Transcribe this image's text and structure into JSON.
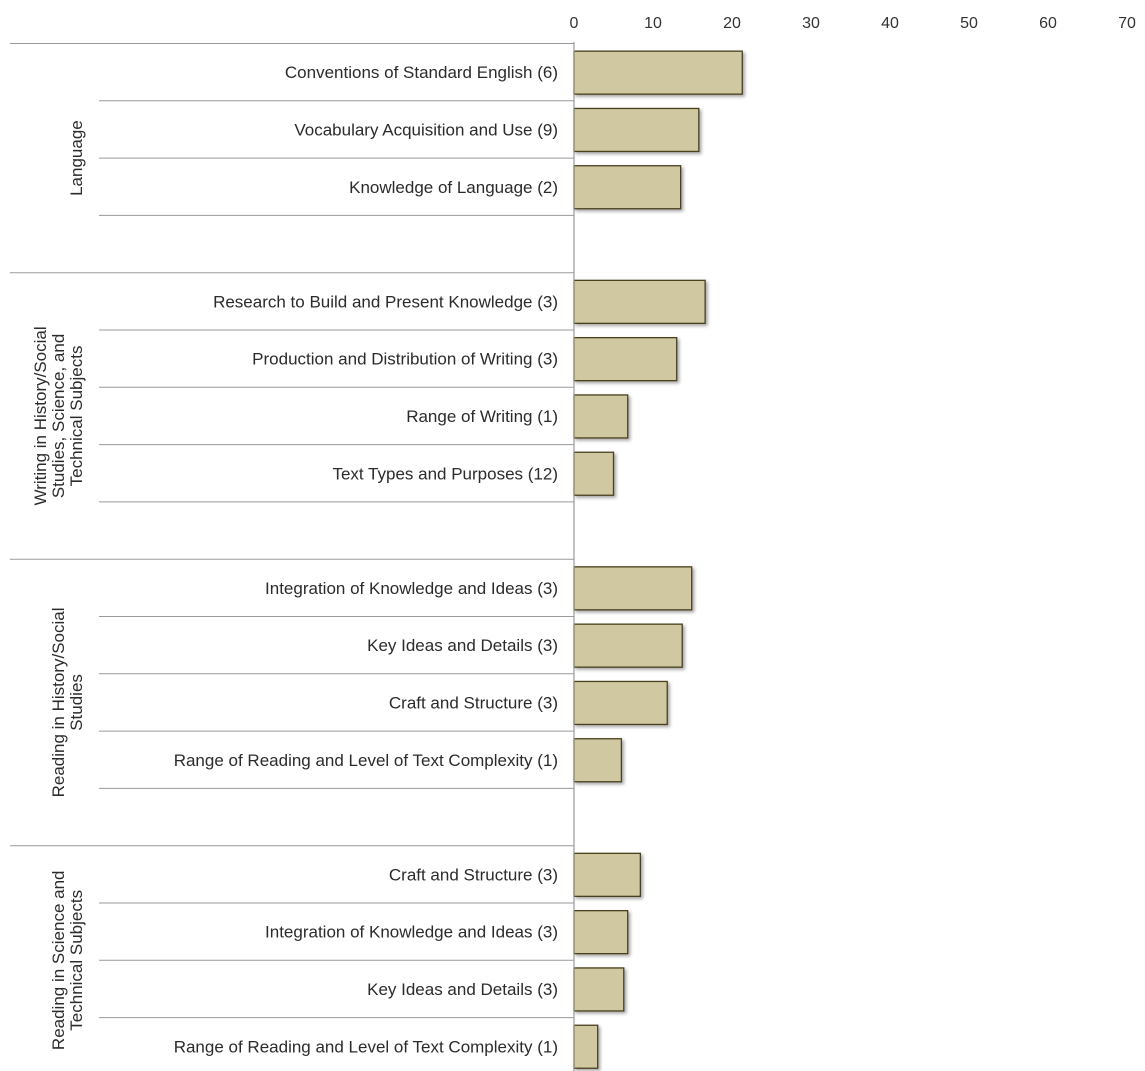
{
  "chart_data": {
    "type": "bar",
    "orientation": "horizontal",
    "title": "",
    "xlabel": "",
    "ylabel": "",
    "xlim": [
      0,
      70
    ],
    "x_ticks": [
      0,
      10,
      20,
      30,
      40,
      50,
      60,
      70
    ],
    "tick_labels": [
      "0",
      "10",
      "20",
      "30",
      "40",
      "50",
      "60",
      "70"
    ],
    "grid": false,
    "legend": "none",
    "colors": {
      "bar_fill": "#cfc8a0",
      "bar_stroke": "#4a3f1e",
      "axis": "#9a9a9a",
      "text": "#2b2b2b"
    },
    "groups": [
      {
        "label_lines": [
          "Language"
        ],
        "categories": [
          {
            "label": "Conventions of Standard English (6)",
            "value": 21.3
          },
          {
            "label": "Vocabulary Acquisition and Use (9)",
            "value": 15.8
          },
          {
            "label": "Knowledge of Language (2)",
            "value": 13.5
          }
        ]
      },
      {
        "label_lines": [
          "Writing in History/Social",
          "Studies, Science, and",
          "Technical Subjects"
        ],
        "categories": [
          {
            "label": "Research to Build and Present Knowledge (3)",
            "value": 16.6
          },
          {
            "label": "Production and Distribution of Writing (3)",
            "value": 13
          },
          {
            "label": "Range of Writing (1)",
            "value": 6.8
          },
          {
            "label": "Text Types and Purposes (12)",
            "value": 5
          }
        ]
      },
      {
        "label_lines": [
          "Reading in History/Social",
          "Studies"
        ],
        "categories": [
          {
            "label": "Integration of Knowledge and Ideas (3)",
            "value": 14.9
          },
          {
            "label": "Key Ideas and Details (3)",
            "value": 13.7
          },
          {
            "label": "Craft and Structure (3)",
            "value": 11.8
          },
          {
            "label": "Range of Reading and Level of Text Complexity (1)",
            "value": 6
          }
        ]
      },
      {
        "label_lines": [
          "Reading in Science and",
          "Technical Subjects"
        ],
        "categories": [
          {
            "label": "Craft and Structure (3)",
            "value": 8.4
          },
          {
            "label": "Integration of Knowledge and Ideas (3)",
            "value": 6.8
          },
          {
            "label": "Key Ideas and Details (3)",
            "value": 6.3
          },
          {
            "label": "Range of Reading and Level of Text Complexity (1)",
            "value": 3
          }
        ]
      }
    ]
  }
}
